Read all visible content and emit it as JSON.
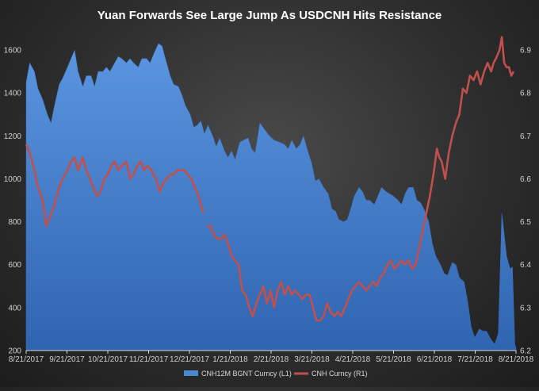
{
  "chart_data": {
    "type": "area+line",
    "title": "Yuan Forwards See Large Jump As USDCNH Hits Resistance",
    "xlabel": "",
    "x_ticks": [
      "8/21/2017",
      "9/21/2017",
      "10/21/2017",
      "11/21/2017",
      "12/21/2017",
      "1/21/2018",
      "2/21/2018",
      "3/21/2018",
      "4/21/2018",
      "5/21/2018",
      "6/21/2018",
      "7/21/2018",
      "8/21/2018"
    ],
    "y_left": {
      "label": "",
      "lim": [
        200,
        1700
      ],
      "ticks": [
        200,
        400,
        600,
        800,
        1000,
        1200,
        1400,
        1600
      ]
    },
    "y_right": {
      "label": "",
      "lim": [
        6.2,
        6.95
      ],
      "ticks": [
        6.2,
        6.3,
        6.4,
        6.5,
        6.6,
        6.7,
        6.8,
        6.9
      ]
    },
    "legend": {
      "position": "bottom",
      "entries": [
        "CNH12M BGNT Curncy  (L1)",
        "CNH Curncy  (R1)"
      ]
    },
    "series": [
      {
        "name": "CNH12M BGNT Curncy  (L1)",
        "axis": "left",
        "kind": "area",
        "color": "#4a86d2",
        "points": [
          [
            0,
            1450
          ],
          [
            3,
            1540
          ],
          [
            7,
            1500
          ],
          [
            10,
            1420
          ],
          [
            14,
            1370
          ],
          [
            18,
            1300
          ],
          [
            21,
            1260
          ],
          [
            24,
            1340
          ],
          [
            28,
            1440
          ],
          [
            31,
            1470
          ],
          [
            35,
            1520
          ],
          [
            38,
            1560
          ],
          [
            41,
            1600
          ],
          [
            44,
            1500
          ],
          [
            48,
            1430
          ],
          [
            51,
            1480
          ],
          [
            55,
            1480
          ],
          [
            58,
            1430
          ],
          [
            61,
            1500
          ],
          [
            65,
            1500
          ],
          [
            68,
            1520
          ],
          [
            71,
            1500
          ],
          [
            75,
            1540
          ],
          [
            78,
            1570
          ],
          [
            81,
            1560
          ],
          [
            85,
            1540
          ],
          [
            88,
            1560
          ],
          [
            91,
            1540
          ],
          [
            95,
            1520
          ],
          [
            98,
            1560
          ],
          [
            102,
            1560
          ],
          [
            105,
            1540
          ],
          [
            108,
            1580
          ],
          [
            112,
            1630
          ],
          [
            115,
            1620
          ],
          [
            118,
            1560
          ],
          [
            122,
            1480
          ],
          [
            125,
            1440
          ],
          [
            129,
            1430
          ],
          [
            132,
            1390
          ],
          [
            135,
            1340
          ],
          [
            139,
            1300
          ],
          [
            142,
            1240
          ],
          [
            145,
            1250
          ],
          [
            148,
            1270
          ],
          [
            151,
            1210
          ],
          [
            154,
            1250
          ],
          [
            158,
            1200
          ],
          [
            161,
            1150
          ],
          [
            164,
            1190
          ],
          [
            168,
            1130
          ],
          [
            171,
            1100
          ],
          [
            174,
            1130
          ],
          [
            177,
            1090
          ],
          [
            181,
            1170
          ],
          [
            184,
            1180
          ],
          [
            188,
            1190
          ],
          [
            191,
            1140
          ],
          [
            194,
            1120
          ],
          [
            198,
            1260
          ],
          [
            202,
            1230
          ],
          [
            206,
            1200
          ],
          [
            210,
            1180
          ],
          [
            215,
            1170
          ],
          [
            219,
            1160
          ],
          [
            222,
            1140
          ],
          [
            225,
            1180
          ],
          [
            229,
            1140
          ],
          [
            232,
            1160
          ],
          [
            235,
            1200
          ],
          [
            238,
            1140
          ],
          [
            242,
            1070
          ],
          [
            245,
            990
          ],
          [
            248,
            1000
          ],
          [
            252,
            960
          ],
          [
            256,
            930
          ],
          [
            259,
            860
          ],
          [
            262,
            850
          ],
          [
            265,
            810
          ],
          [
            269,
            800
          ],
          [
            272,
            810
          ],
          [
            275,
            860
          ],
          [
            278,
            920
          ],
          [
            282,
            960
          ],
          [
            285,
            940
          ],
          [
            288,
            900
          ],
          [
            291,
            900
          ],
          [
            295,
            880
          ],
          [
            298,
            920
          ],
          [
            301,
            960
          ],
          [
            305,
            940
          ],
          [
            308,
            930
          ],
          [
            311,
            920
          ],
          [
            315,
            900
          ],
          [
            318,
            880
          ],
          [
            321,
            930
          ],
          [
            324,
            960
          ],
          [
            328,
            960
          ],
          [
            331,
            900
          ],
          [
            334,
            890
          ],
          [
            337,
            860
          ],
          [
            341,
            800
          ],
          [
            344,
            700
          ],
          [
            347,
            640
          ],
          [
            351,
            600
          ],
          [
            354,
            560
          ],
          [
            357,
            550
          ],
          [
            361,
            610
          ],
          [
            364,
            600
          ],
          [
            367,
            540
          ],
          [
            371,
            520
          ],
          [
            374,
            430
          ],
          [
            377,
            310
          ],
          [
            380,
            260
          ],
          [
            384,
            300
          ],
          [
            387,
            290
          ],
          [
            390,
            290
          ],
          [
            394,
            250
          ],
          [
            397,
            230
          ],
          [
            400,
            280
          ],
          [
            403,
            840
          ],
          [
            407,
            640
          ],
          [
            410,
            580
          ],
          [
            412,
            590
          ],
          [
            414,
            230
          ],
          [
            415,
            210
          ]
        ]
      },
      {
        "name": "CNH Curncy  (R1)",
        "axis": "right",
        "kind": "line",
        "color": "#c0504d",
        "points": [
          [
            0,
            6.68
          ],
          [
            3,
            6.66
          ],
          [
            7,
            6.62
          ],
          [
            10,
            6.58
          ],
          [
            14,
            6.55
          ],
          [
            17,
            6.49
          ],
          [
            20,
            6.51
          ],
          [
            24,
            6.54
          ],
          [
            28,
            6.58
          ],
          [
            31,
            6.6
          ],
          [
            35,
            6.62
          ],
          [
            38,
            6.64
          ],
          [
            41,
            6.65
          ],
          [
            44,
            6.62
          ],
          [
            48,
            6.65
          ],
          [
            51,
            6.62
          ],
          [
            54,
            6.6
          ],
          [
            57,
            6.58
          ],
          [
            60,
            6.56
          ],
          [
            63,
            6.57
          ],
          [
            66,
            6.6
          ],
          [
            69,
            6.61
          ],
          [
            72,
            6.63
          ],
          [
            75,
            6.64
          ],
          [
            78,
            6.62
          ],
          [
            81,
            6.63
          ],
          [
            85,
            6.64
          ],
          [
            88,
            6.6
          ],
          [
            91,
            6.61
          ],
          [
            94,
            6.63
          ],
          [
            97,
            6.64
          ],
          [
            100,
            6.62
          ],
          [
            103,
            6.63
          ],
          [
            106,
            6.62
          ],
          [
            110,
            6.6
          ],
          [
            113,
            6.57
          ],
          [
            116,
            6.59
          ],
          [
            119,
            6.6
          ],
          [
            122,
            6.61
          ],
          [
            125,
            6.61
          ],
          [
            128,
            6.62
          ],
          [
            131,
            6.62
          ],
          [
            134,
            6.62
          ],
          [
            137,
            6.61
          ],
          [
            140,
            6.6
          ],
          [
            143,
            6.58
          ],
          [
            146,
            6.56
          ],
          [
            150,
            6.52
          ],
          [
            153,
            6.49
          ],
          [
            156,
            6.49
          ],
          [
            159,
            6.47
          ],
          [
            162,
            6.46
          ],
          [
            165,
            6.46
          ],
          [
            168,
            6.47
          ],
          [
            171,
            6.45
          ],
          [
            174,
            6.42
          ],
          [
            177,
            6.41
          ],
          [
            180,
            6.4
          ],
          [
            183,
            6.34
          ],
          [
            186,
            6.33
          ],
          [
            189,
            6.3
          ],
          [
            192,
            6.28
          ],
          [
            195,
            6.31
          ],
          [
            198,
            6.33
          ],
          [
            201,
            6.35
          ],
          [
            204,
            6.31
          ],
          [
            207,
            6.34
          ],
          [
            210,
            6.3
          ],
          [
            213,
            6.34
          ],
          [
            216,
            6.36
          ],
          [
            219,
            6.33
          ],
          [
            222,
            6.35
          ],
          [
            225,
            6.33
          ],
          [
            228,
            6.34
          ],
          [
            231,
            6.33
          ],
          [
            234,
            6.32
          ],
          [
            237,
            6.33
          ],
          [
            240,
            6.33
          ],
          [
            243,
            6.3
          ],
          [
            246,
            6.27
          ],
          [
            249,
            6.27
          ],
          [
            252,
            6.28
          ],
          [
            255,
            6.31
          ],
          [
            258,
            6.29
          ],
          [
            261,
            6.28
          ],
          [
            264,
            6.29
          ],
          [
            267,
            6.28
          ],
          [
            270,
            6.3
          ],
          [
            273,
            6.32
          ],
          [
            276,
            6.34
          ],
          [
            279,
            6.35
          ],
          [
            282,
            6.36
          ],
          [
            285,
            6.35
          ],
          [
            288,
            6.34
          ],
          [
            291,
            6.35
          ],
          [
            294,
            6.36
          ],
          [
            297,
            6.35
          ],
          [
            300,
            6.37
          ],
          [
            303,
            6.38
          ],
          [
            306,
            6.4
          ],
          [
            309,
            6.41
          ],
          [
            312,
            6.39
          ],
          [
            315,
            6.4
          ],
          [
            318,
            6.41
          ],
          [
            321,
            6.4
          ],
          [
            324,
            6.41
          ],
          [
            327,
            6.39
          ],
          [
            330,
            6.4
          ],
          [
            333,
            6.44
          ],
          [
            336,
            6.48
          ],
          [
            339,
            6.52
          ],
          [
            342,
            6.56
          ],
          [
            345,
            6.61
          ],
          [
            348,
            6.67
          ],
          [
            350,
            6.65
          ],
          [
            352,
            6.64
          ],
          [
            355,
            6.6
          ],
          [
            358,
            6.66
          ],
          [
            361,
            6.7
          ],
          [
            364,
            6.73
          ],
          [
            367,
            6.75
          ],
          [
            370,
            6.81
          ],
          [
            373,
            6.8
          ],
          [
            376,
            6.84
          ],
          [
            379,
            6.83
          ],
          [
            382,
            6.85
          ],
          [
            385,
            6.82
          ],
          [
            388,
            6.85
          ],
          [
            391,
            6.87
          ],
          [
            394,
            6.85
          ],
          [
            396,
            6.87
          ],
          [
            398,
            6.88
          ],
          [
            401,
            6.9
          ],
          [
            403,
            6.93
          ],
          [
            405,
            6.87
          ],
          [
            407,
            6.86
          ],
          [
            409,
            6.86
          ],
          [
            411,
            6.84
          ],
          [
            413,
            6.85
          ]
        ]
      }
    ]
  }
}
